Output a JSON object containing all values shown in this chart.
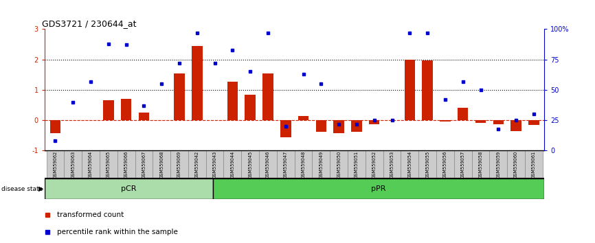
{
  "title": "GDS3721 / 230644_at",
  "samples": [
    "GSM559062",
    "GSM559063",
    "GSM559064",
    "GSM559065",
    "GSM559066",
    "GSM559067",
    "GSM559068",
    "GSM559069",
    "GSM559042",
    "GSM559043",
    "GSM559044",
    "GSM559045",
    "GSM559046",
    "GSM559047",
    "GSM559048",
    "GSM559049",
    "GSM559050",
    "GSM559051",
    "GSM559052",
    "GSM559053",
    "GSM559054",
    "GSM559055",
    "GSM559056",
    "GSM559057",
    "GSM559058",
    "GSM559059",
    "GSM559060",
    "GSM559061"
  ],
  "transformed_count": [
    -0.42,
    0.0,
    0.0,
    0.65,
    0.7,
    0.25,
    0.0,
    1.55,
    2.45,
    0.0,
    1.28,
    0.85,
    1.55,
    -0.55,
    0.15,
    -0.38,
    -0.42,
    -0.38,
    -0.12,
    0.0,
    2.0,
    1.98,
    -0.05,
    0.42,
    -0.08,
    -0.12,
    -0.35,
    -0.15
  ],
  "percentile_rank": [
    8,
    40,
    57,
    88,
    87,
    37,
    55,
    72,
    97,
    72,
    83,
    65,
    97,
    20,
    63,
    55,
    22,
    22,
    25,
    25,
    97,
    97,
    42,
    57,
    50,
    18,
    25,
    30
  ],
  "pCR_count": 9,
  "pPR_count": 19,
  "bar_color": "#cc2200",
  "dot_color": "#0000cc",
  "background_color": "#ffffff",
  "ylim_left": [
    -1,
    3
  ],
  "ylim_right": [
    0,
    100
  ],
  "hline_y": [
    1.0,
    2.0
  ],
  "hline_y_right_pct": 25,
  "legend_bar": "transformed count",
  "legend_dot": "percentile rank within the sample",
  "pCR_color": "#aaddaa",
  "pPR_color": "#55cc55",
  "label_color_left": "#cc2200",
  "label_color_right": "#0000cc",
  "cell_bg": "#cccccc",
  "cell_border": "#888888"
}
